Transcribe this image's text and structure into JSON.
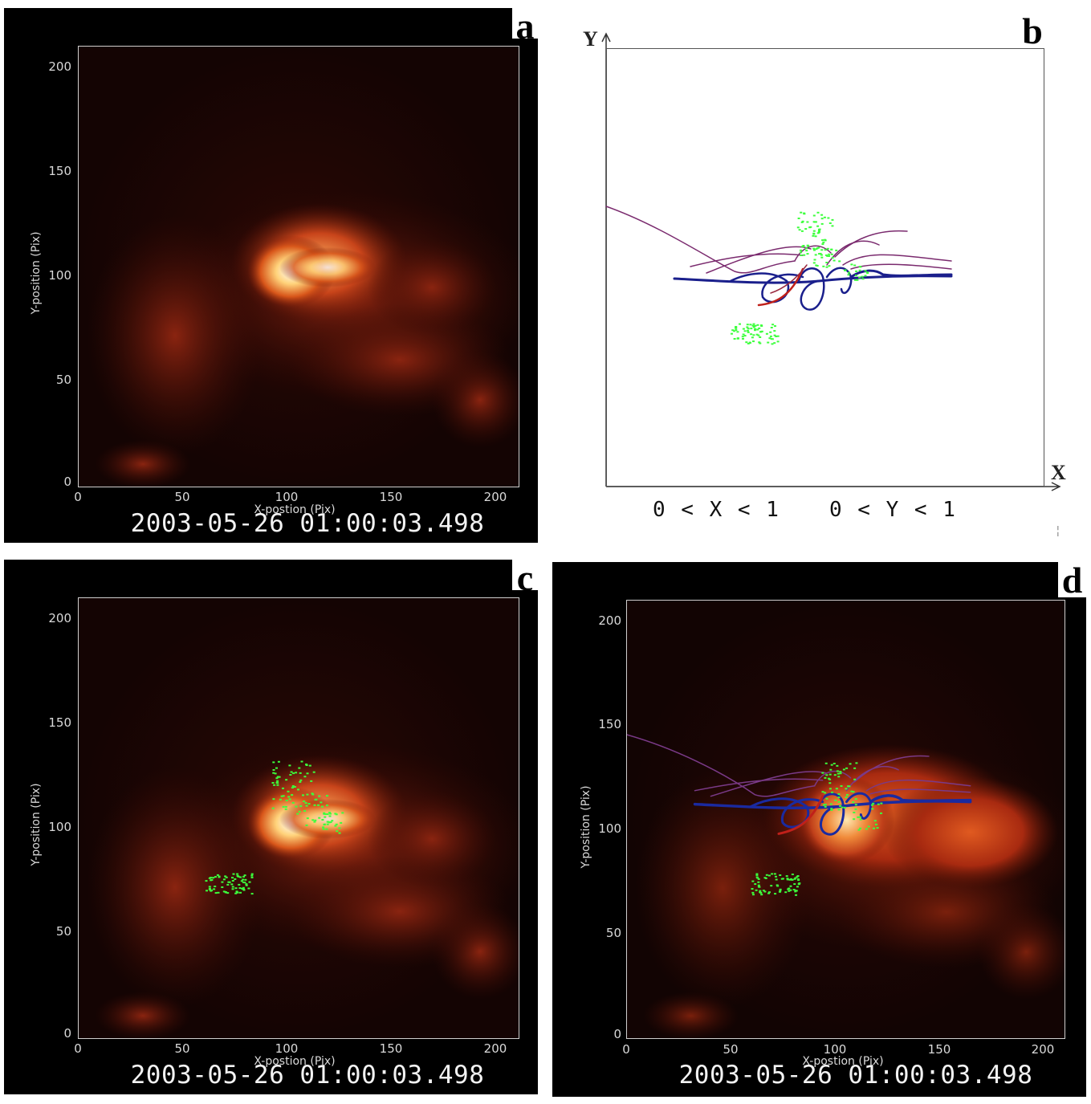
{
  "figure": {
    "timestamp": "2003-05-26  01:00:03.498",
    "x_axis_label": "X-postion (Pix)",
    "y_axis_label": "Y-position (Pix)",
    "x_ticks": [
      "0",
      "50",
      "100",
      "150",
      "200"
    ],
    "y_ticks": [
      "0",
      "50",
      "100",
      "150",
      "200"
    ],
    "axis_range": [
      0,
      210
    ],
    "colors": {
      "emission": "#ff7a1a",
      "core": "#ffffff",
      "points": "#3cff3c",
      "field_lines_top": "#7a2a6e",
      "field_lines_low": "#1a1f8c",
      "field_lines_red": "#c0201a"
    }
  },
  "panels": {
    "a": {
      "letter": "a",
      "content": "intensity map"
    },
    "b": {
      "letter": "b",
      "y_axis": "Y",
      "x_axis": "X",
      "range_x": "0 < X < 1",
      "range_y": "0 < Y < 1",
      "corner_mark": "¦"
    },
    "c": {
      "letter": "c",
      "content": "intensity map with points"
    },
    "d": {
      "letter": "d",
      "content": "intensity map with points and field lines"
    }
  }
}
